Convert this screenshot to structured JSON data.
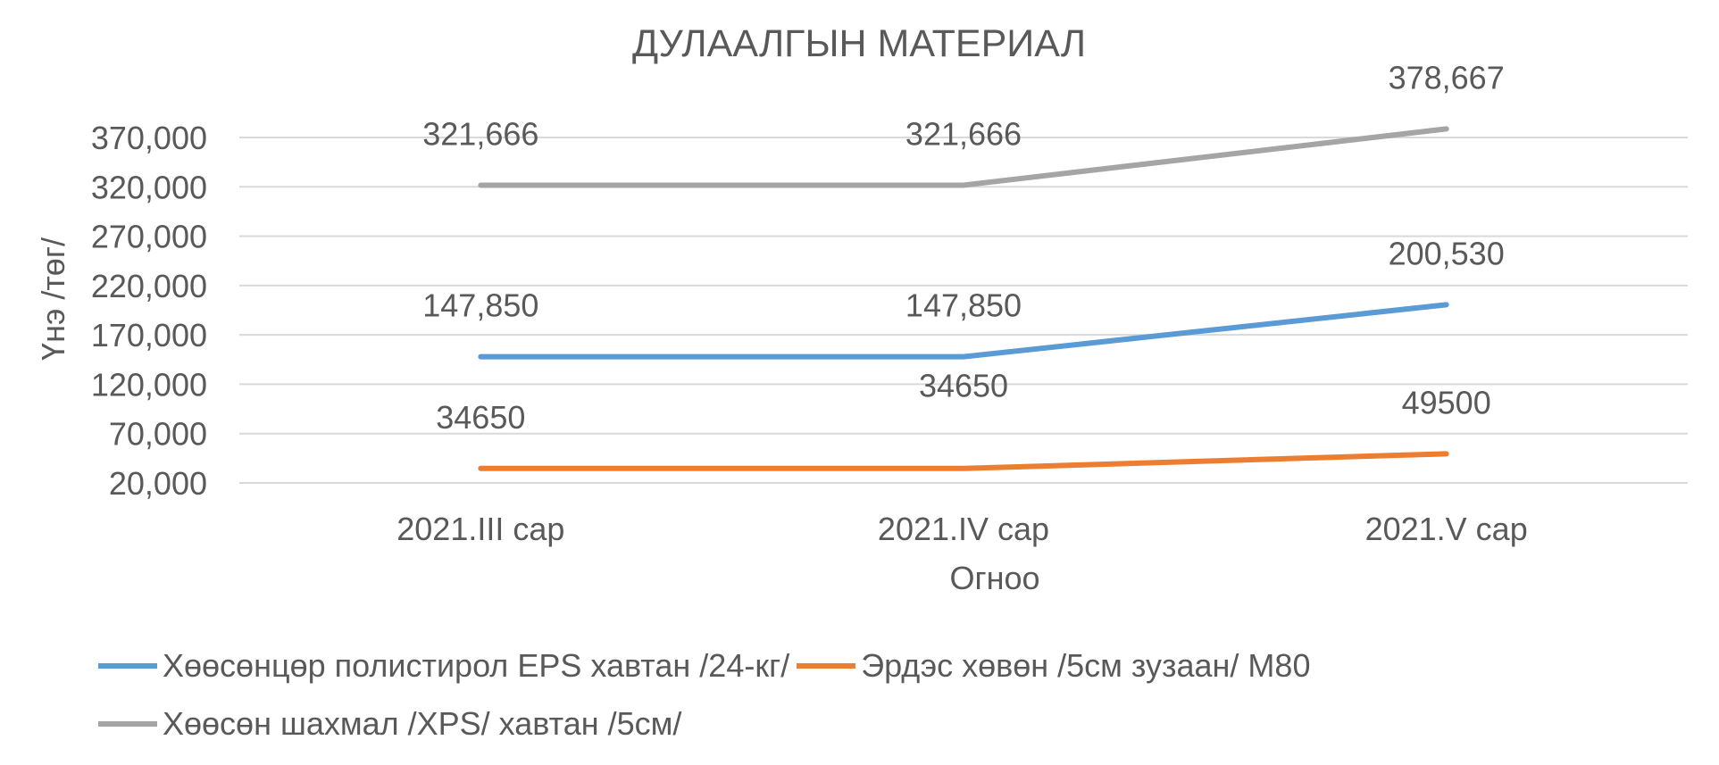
{
  "chart_data": {
    "type": "line",
    "title": "ДУЛААЛГЫН МАТЕРИАЛ",
    "xlabel": "Огноо",
    "ylabel": "Үнэ /төг/",
    "categories": [
      "2021.III сар",
      "2021.IV сар",
      "2021.V сар"
    ],
    "ylim": [
      20000,
      370000
    ],
    "yticks": [
      20000,
      70000,
      120000,
      170000,
      220000,
      270000,
      320000,
      370000
    ],
    "ytick_labels": [
      "20,000",
      "70,000",
      "120,000",
      "170,000",
      "220,000",
      "270,000",
      "320,000",
      "370,000"
    ],
    "grid": true,
    "legend_position": "bottom",
    "series": [
      {
        "name": "Хөөсөнцөр полистирол EPS хавтан /24-кг/",
        "color": "#5b9bd5",
        "values": [
          147850,
          147850,
          200530
        ],
        "data_labels": [
          "147,850",
          "147,850",
          "200,530"
        ]
      },
      {
        "name": "Эрдэс хөвөн /5см зузаан/ М80",
        "color": "#ed7d31",
        "values": [
          34650,
          34650,
          49500
        ],
        "data_labels": [
          "34650",
          "34650",
          "49500"
        ]
      },
      {
        "name": "Хөөсөн шахмал /XPS/ хавтан /5см/",
        "color": "#a5a5a5",
        "values": [
          321666,
          321666,
          378667
        ],
        "data_labels": [
          "321,666",
          "321,666",
          "378,667"
        ]
      }
    ]
  }
}
